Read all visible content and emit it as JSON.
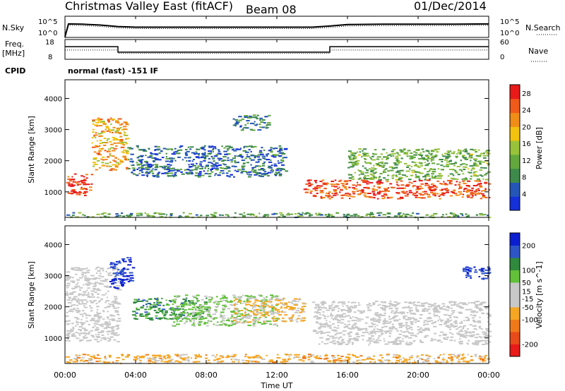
{
  "header": {
    "title": "Christmas Valley East (fitACF)",
    "beam": "Beam 08",
    "date": "01/Dec/2014"
  },
  "left_labels": {
    "nsky": "N.Sky",
    "freq": "Freq.",
    "freq_unit": "[MHz]",
    "cpid": "CPID"
  },
  "right_labels": {
    "nsearch": "N.Search",
    "nave": "Nave"
  },
  "cpid_text": "normal (fast) -151 IF",
  "time_axis": {
    "label": "Time UT",
    "ticks": [
      "00:00",
      "04:00",
      "08:00",
      "12:00",
      "16:00",
      "20:00",
      "00:00"
    ]
  },
  "colors": {
    "power": [
      "#1530d8",
      "#2456b8",
      "#3e8a4a",
      "#63a83d",
      "#98c23a",
      "#f2c20f",
      "#f08c18",
      "#f05a1a",
      "#e81a1a"
    ],
    "velocity": [
      "#0b1fd0",
      "#2d55c8",
      "#2f8a3e",
      "#62c03a",
      "#c8c8c8",
      "#c8c8c8",
      "#f5a623",
      "#f07a1a",
      "#e84a1a",
      "#e81a1a"
    ],
    "ground_scatter": "#c8c8c8"
  },
  "chart_data": [
    {
      "type": "line",
      "name": "noise-panel",
      "left_axis": {
        "label": "N.Sky",
        "ticks": [
          "10^5",
          "10^0"
        ],
        "scale": "log"
      },
      "right_axis": {
        "label": "N.Search",
        "ticks": [
          "10^5",
          "10^0"
        ],
        "scale": "log"
      },
      "x": [
        0,
        0.2,
        1,
        2,
        3,
        4,
        6,
        8,
        10,
        12,
        14,
        15,
        16,
        18,
        20,
        22,
        24
      ],
      "series": [
        {
          "values": [
            1,
            3000,
            2500,
            1500,
            600,
            400,
            400,
            400,
            400,
            400,
            400,
            800,
            2000,
            2500,
            2500,
            2500,
            3000
          ]
        }
      ]
    },
    {
      "type": "line",
      "name": "freq-nave-panel",
      "left_axis": {
        "label": "Freq. [MHz]",
        "ticks": [
          "18",
          "8"
        ],
        "range": [
          8,
          18
        ]
      },
      "right_axis": {
        "label": "Nave",
        "ticks": [
          "60",
          "0"
        ],
        "range": [
          0,
          60
        ]
      },
      "x": [
        0,
        3,
        3,
        15,
        15,
        24
      ],
      "series": [
        {
          "values": [
            14.5,
            14.5,
            11.5,
            11.5,
            14.5,
            14.5
          ]
        },
        {
          "values": [
            28,
            28,
            17,
            17,
            28,
            28
          ]
        }
      ]
    },
    {
      "type": "heatmap",
      "name": "power",
      "ylabel": "Slant Range [km]",
      "xlabel": "Time UT",
      "yticks": [
        1000,
        2000,
        3000,
        4000
      ],
      "ylim": [
        180,
        4600
      ],
      "xlim": [
        0,
        24
      ],
      "colorbar": {
        "label": "Power [dB]",
        "ticks": [
          4,
          8,
          12,
          16,
          20,
          24,
          28
        ],
        "range": [
          0,
          30
        ]
      },
      "regions": [
        {
          "t0": 0.0,
          "t1": 1.5,
          "r0": 900,
          "r1": 1600,
          "level": 27
        },
        {
          "t0": 1.5,
          "t1": 3.5,
          "r0": 1700,
          "r1": 3400,
          "level": 20
        },
        {
          "t0": 3.5,
          "t1": 12.5,
          "r0": 1500,
          "r1": 2500,
          "level": 6
        },
        {
          "t0": 9.5,
          "t1": 11.5,
          "r0": 3000,
          "r1": 3500,
          "level": 8
        },
        {
          "t0": 13.5,
          "t1": 24.0,
          "r0": 800,
          "r1": 1400,
          "level": 26
        },
        {
          "t0": 16.0,
          "t1": 24.0,
          "r0": 1400,
          "r1": 2400,
          "level": 12
        },
        {
          "t0": 0.0,
          "t1": 24.0,
          "r0": 200,
          "r1": 350,
          "level": 10
        }
      ]
    },
    {
      "type": "heatmap",
      "name": "velocity",
      "ylabel": "Slant Range [km]",
      "xlabel": "Time UT",
      "yticks": [
        1000,
        2000,
        3000,
        4000
      ],
      "ylim": [
        180,
        4600
      ],
      "xlim": [
        0,
        24
      ],
      "colorbar": {
        "label": "Velocity [m s^-1]",
        "ticks": [
          200,
          100,
          50,
          15,
          -15,
          -50,
          -100,
          -200
        ],
        "range": [
          -250,
          250
        ]
      },
      "regions": [
        {
          "t0": 0.0,
          "t1": 3.0,
          "r0": 900,
          "r1": 3300,
          "value": 0,
          "ground_scatter": true
        },
        {
          "t0": 2.5,
          "t1": 3.8,
          "r0": 2600,
          "r1": 3600,
          "value": 220
        },
        {
          "t0": 3.8,
          "t1": 8.0,
          "r0": 1600,
          "r1": 2300,
          "value": 120
        },
        {
          "t0": 6.0,
          "t1": 12.0,
          "r0": 1400,
          "r1": 2400,
          "value": 60
        },
        {
          "t0": 9.5,
          "t1": 13.5,
          "r0": 1500,
          "r1": 2300,
          "value": -60
        },
        {
          "t0": 14.0,
          "t1": 24.0,
          "r0": 800,
          "r1": 2200,
          "value": 0,
          "ground_scatter": true
        },
        {
          "t0": 22.5,
          "t1": 24.0,
          "r0": 2900,
          "r1": 3300,
          "value": 200
        },
        {
          "t0": 0.0,
          "t1": 24.0,
          "r0": 200,
          "r1": 500,
          "value": -70
        }
      ]
    }
  ]
}
